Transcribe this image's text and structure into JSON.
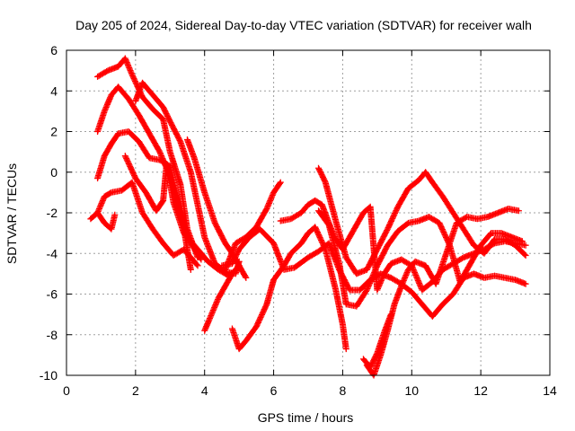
{
  "chart_data": {
    "type": "scatter",
    "title": "Day 205 of 2024, Sidereal Day-to-day VTEC variation (SDTVAR) for receiver walh",
    "xlabel": "GPS time / hours",
    "ylabel": "SDTVAR / TECUs",
    "xlim": [
      0,
      14
    ],
    "ylim": [
      -10,
      6
    ],
    "xticks": [
      0,
      2,
      4,
      6,
      8,
      10,
      12,
      14
    ],
    "yticks": [
      -10,
      -8,
      -6,
      -4,
      -2,
      0,
      2,
      4,
      6
    ],
    "grid": true,
    "legend": "none",
    "marker": "plus",
    "color": "#ff0000",
    "series": [
      {
        "x": [
          0.9,
          1.2,
          1.5,
          1.7,
          1.9,
          2.2,
          2.5,
          2.8,
          3.0,
          3.3,
          3.5,
          3.8
        ],
        "y": [
          4.7,
          5.0,
          5.2,
          5.6,
          4.8,
          3.7,
          3.1,
          2.6,
          1.0,
          -0.6,
          -2.8,
          -4.2
        ]
      },
      {
        "x": [
          0.9,
          1.1,
          1.3,
          1.5,
          1.8,
          2.1,
          2.4,
          2.7,
          3.0,
          3.3,
          3.6,
          3.9
        ],
        "y": [
          2.0,
          3.0,
          3.8,
          4.2,
          3.6,
          2.8,
          1.9,
          1.0,
          -0.2,
          -2.0,
          -3.5,
          -4.3
        ]
      },
      {
        "x": [
          0.9,
          1.1,
          1.3,
          1.5,
          1.8,
          2.1,
          2.4,
          2.7,
          3.0,
          3.2,
          3.4,
          3.6
        ],
        "y": [
          -0.3,
          0.8,
          1.4,
          1.9,
          2.0,
          1.5,
          0.7,
          0.6,
          0.3,
          -1.2,
          -2.8,
          -4.8
        ]
      },
      {
        "x": [
          0.9,
          1.1,
          1.3,
          1.6,
          1.9,
          2.2,
          2.5,
          2.8,
          3.1,
          3.4,
          3.6,
          3.8
        ],
        "y": [
          -2.0,
          -1.2,
          -1.0,
          -0.9,
          -0.5,
          -2.0,
          -2.8,
          -3.5,
          -4.1,
          -3.8,
          -4.2,
          -4.6
        ]
      },
      {
        "x": [
          0.7,
          0.9,
          1.1,
          1.3,
          1.4
        ],
        "y": [
          -2.3,
          -2.0,
          -2.5,
          -2.8,
          -2.1
        ]
      },
      {
        "x": [
          1.7,
          2.0,
          2.3,
          2.6,
          2.8,
          2.9,
          3.1,
          3.4,
          3.8,
          4.1,
          4.4,
          4.7,
          5.0
        ],
        "y": [
          0.8,
          -0.3,
          -1.0,
          -1.9,
          -1.4,
          0.4,
          -1.5,
          -3.0,
          -3.8,
          -4.4,
          -4.8,
          -5.1,
          -4.7
        ]
      },
      {
        "x": [
          3.5,
          3.7,
          4.0,
          4.3,
          4.6,
          4.8,
          5.0,
          5.2
        ],
        "y": [
          1.6,
          0.7,
          -1.0,
          -2.5,
          -3.5,
          -4.0,
          -4.6,
          -5.2
        ]
      },
      {
        "x": [
          2.0,
          2.2,
          2.5,
          2.8,
          3.0,
          3.3,
          3.6,
          3.8,
          4.0,
          4.3,
          4.6,
          4.9,
          5.0
        ],
        "y": [
          3.5,
          4.4,
          3.8,
          3.2,
          2.5,
          1.5,
          0.0,
          -1.6,
          -3.2,
          -4.5,
          -4.9,
          -5.0,
          -4.4
        ]
      },
      {
        "x": [
          4.0,
          4.2,
          4.4,
          4.6,
          4.8,
          5.0
        ],
        "y": [
          -7.8,
          -7.0,
          -6.2,
          -5.6,
          -5.0,
          -4.6
        ]
      },
      {
        "x": [
          4.8,
          5.0,
          5.2,
          5.5,
          5.8,
          6.0,
          6.3,
          6.5,
          6.8,
          7.0,
          7.2,
          7.5,
          7.8,
          8.0,
          8.1
        ],
        "y": [
          -7.7,
          -8.7,
          -8.3,
          -7.6,
          -6.5,
          -5.3,
          -4.6,
          -4.0,
          -3.5,
          -3.0,
          -2.7,
          -3.8,
          -5.8,
          -7.5,
          -8.7
        ]
      },
      {
        "x": [
          4.6,
          4.9,
          5.2,
          5.5,
          5.8,
          6.0,
          6.2
        ],
        "y": [
          -4.8,
          -3.5,
          -3.2,
          -2.7,
          -1.8,
          -1.0,
          -0.5
        ]
      },
      {
        "x": [
          4.5,
          4.8,
          5.0,
          5.3,
          5.6,
          6.0,
          6.3,
          6.6,
          7.0,
          7.3,
          7.6,
          7.9,
          8.2,
          8.5,
          8.8,
          9.1,
          9.4,
          9.7,
          10.0,
          10.3,
          10.6,
          10.9,
          11.2,
          11.5,
          11.8,
          12.1,
          12.4,
          12.7,
          13.0,
          13.3
        ],
        "y": [
          -4.6,
          -4.5,
          -3.8,
          -3.2,
          -2.8,
          -3.5,
          -4.8,
          -4.7,
          -4.2,
          -3.9,
          -3.5,
          -4.8,
          -5.8,
          -5.8,
          -5.3,
          -5.0,
          -5.2,
          -5.5,
          -5.9,
          -6.5,
          -7.1,
          -6.5,
          -6.0,
          -5.2,
          -5.0,
          -5.2,
          -5.1,
          -5.2,
          -5.3,
          -5.5
        ]
      },
      {
        "x": [
          6.2,
          6.5,
          6.8,
          7.0,
          7.2,
          7.4,
          7.6,
          7.8,
          8.0,
          8.2,
          8.4,
          8.6,
          8.8,
          9.0,
          9.2,
          9.4,
          9.7,
          10.0,
          10.3,
          10.6,
          10.9,
          11.2,
          11.5,
          11.8,
          12.1,
          12.4,
          12.7,
          13.0,
          13.3
        ],
        "y": [
          -2.4,
          -2.3,
          -2.0,
          -1.6,
          -1.4,
          -1.6,
          -2.5,
          -3.3,
          -3.8,
          -3.2,
          -2.6,
          -2.0,
          -1.7,
          -5.8,
          -5.0,
          -4.5,
          -4.3,
          -4.6,
          -5.8,
          -5.4,
          -4.8,
          -4.5,
          -4.2,
          -4.0,
          -3.8,
          -3.5,
          -3.4,
          -3.5,
          -3.6
        ]
      },
      {
        "x": [
          7.3,
          7.5,
          7.8,
          8.1,
          8.4,
          8.7,
          9.0,
          9.3,
          9.6,
          9.9,
          10.2,
          10.4,
          10.6,
          10.9,
          11.2,
          11.5,
          11.8,
          12.1,
          12.4,
          12.7,
          13.0,
          13.3
        ],
        "y": [
          0.2,
          -0.5,
          -2.4,
          -4.2,
          -5.0,
          -4.8,
          -3.8,
          -2.8,
          -1.7,
          -0.8,
          -0.4,
          0.0,
          -0.5,
          -1.2,
          -2.0,
          -2.8,
          -3.6,
          -4.0,
          -3.3,
          -3.3,
          -3.6,
          -4.1
        ]
      },
      {
        "x": [
          7.3,
          7.6,
          7.9,
          8.1,
          8.4,
          8.7,
          9.0,
          9.3,
          9.6,
          9.9,
          10.2,
          10.5,
          10.8,
          11.1,
          11.4,
          11.7,
          12.0,
          12.3,
          12.6,
          12.9,
          13.2
        ],
        "y": [
          -1.9,
          -2.6,
          -4.5,
          -6.5,
          -6.6,
          -5.8,
          -4.6,
          -3.6,
          -2.9,
          -2.5,
          -2.4,
          -2.2,
          -2.5,
          -3.6,
          -5.4,
          -4.5,
          -3.6,
          -3.0,
          -3.0,
          -3.2,
          -3.4
        ]
      },
      {
        "x": [
          8.7,
          8.9,
          9.1,
          9.3,
          9.5,
          9.7,
          9.9,
          10.1,
          10.4,
          10.7,
          11.0,
          11.3,
          11.6,
          11.9,
          12.2,
          12.5,
          12.8,
          13.1
        ],
        "y": [
          -9.5,
          -10.0,
          -9.0,
          -7.8,
          -6.5,
          -5.6,
          -4.8,
          -4.4,
          -4.6,
          -5.5,
          -4.0,
          -2.5,
          -2.2,
          -2.3,
          -2.2,
          -2.0,
          -1.8,
          -1.9
        ]
      },
      {
        "x": [
          8.6,
          8.8,
          9.0,
          9.2,
          9.4
        ],
        "y": [
          -9.2,
          -9.6,
          -8.9,
          -7.9,
          -7.0
        ]
      }
    ]
  }
}
